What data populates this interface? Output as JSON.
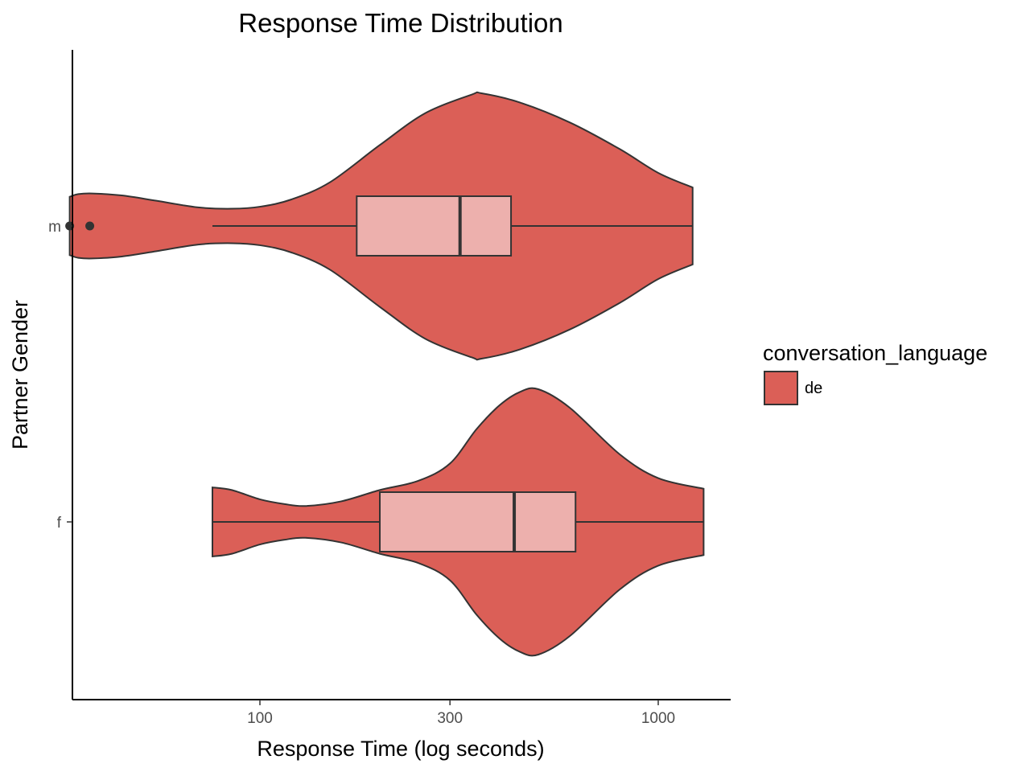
{
  "chart_data": {
    "type": "violin",
    "title": "Response Time Distribution",
    "xlabel": "Response Time (log seconds)",
    "ylabel": "Partner Gender",
    "x_scale": "log10",
    "xlim": [
      30,
      1350
    ],
    "x_ticks": [
      100,
      300,
      1000
    ],
    "x_tick_labels": [
      "100",
      "300",
      "1000"
    ],
    "categories": [
      "m",
      "f"
    ],
    "grid": false,
    "legend": {
      "title": "conversation_language",
      "position": "right",
      "entries": [
        {
          "label": "de",
          "color": "#db5f57"
        }
      ]
    },
    "colors": {
      "violin_fill": "#db5f57",
      "box_fill": "#edb0ad",
      "outline": "#333333",
      "axis": "#000000"
    },
    "series": [
      {
        "category": "m",
        "language": "de",
        "violin": {
          "x": [
            33.3,
            35,
            38,
            45,
            55,
            70,
            85,
            100,
            120,
            150,
            200,
            260,
            340,
            360,
            450,
            600,
            800,
            1000,
            1220
          ],
          "density": [
            0.22,
            0.24,
            0.245,
            0.23,
            0.19,
            0.14,
            0.13,
            0.145,
            0.2,
            0.33,
            0.61,
            0.85,
            0.99,
            1.0,
            0.93,
            0.78,
            0.58,
            0.4,
            0.29
          ]
        },
        "box": {
          "whisker_low": 76,
          "q1": 175,
          "median": 318,
          "q3": 427,
          "whisker_high": 1220
        },
        "outliers": [
          33.3,
          37.4
        ]
      },
      {
        "category": "f",
        "language": "de",
        "violin": {
          "x": [
            76,
            85,
            100,
            115,
            130,
            160,
            200,
            250,
            300,
            350,
            400,
            450,
            500,
            600,
            800,
            1000,
            1300
          ],
          "density": [
            0.26,
            0.24,
            0.17,
            0.135,
            0.12,
            0.155,
            0.24,
            0.31,
            0.44,
            0.7,
            0.88,
            0.98,
            1.0,
            0.86,
            0.51,
            0.33,
            0.25
          ]
        },
        "box": {
          "whisker_low": 76,
          "q1": 200,
          "median": 435,
          "q3": 620,
          "whisker_high": 1300
        },
        "outliers": []
      }
    ]
  }
}
